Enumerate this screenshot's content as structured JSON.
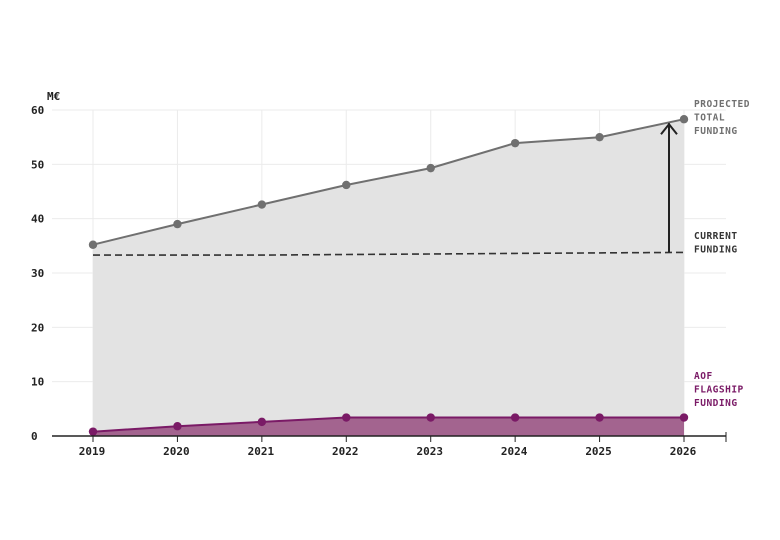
{
  "chart_data": {
    "type": "area",
    "y_unit": "M€",
    "categories": [
      "2019",
      "2020",
      "2021",
      "2022",
      "2023",
      "2024",
      "2025",
      "2026"
    ],
    "ylim": [
      0,
      60
    ],
    "yticks": [
      "0",
      "10",
      "20",
      "30",
      "40",
      "50",
      "60"
    ],
    "grid": true,
    "series": [
      {
        "key": "projected",
        "values": [
          35.2,
          39,
          42.6,
          46.2,
          49.3,
          53.9,
          55,
          58.3
        ],
        "color": "#707070",
        "fill": "#e3e3e3"
      },
      {
        "key": "aof",
        "values": [
          0.8,
          1.8,
          2.6,
          3.4,
          3.4,
          3.4,
          3.4,
          3.4
        ],
        "color": "#7a1a66",
        "fill": "#a3648f"
      },
      {
        "key": "current",
        "values": [
          33.3,
          33.3,
          33.3,
          33.4,
          33.5,
          33.6,
          33.7,
          33.8
        ],
        "color": "#333333",
        "style": "dashed"
      }
    ],
    "annotations": [
      {
        "key": "projected",
        "lines": [
          "PROJECTED",
          "TOTAL",
          "FUNDING"
        ],
        "color": "#707070"
      },
      {
        "key": "current",
        "lines": [
          "CURRENT",
          "FUNDING"
        ],
        "color": "#333333"
      },
      {
        "key": "aof",
        "lines": [
          "AOF",
          "FLAGSHIP",
          "FUNDING"
        ],
        "color": "#7a1a66"
      }
    ],
    "arrow": {
      "x": "2026",
      "from": 33.8,
      "to": 58.3,
      "color": "#222222"
    }
  }
}
